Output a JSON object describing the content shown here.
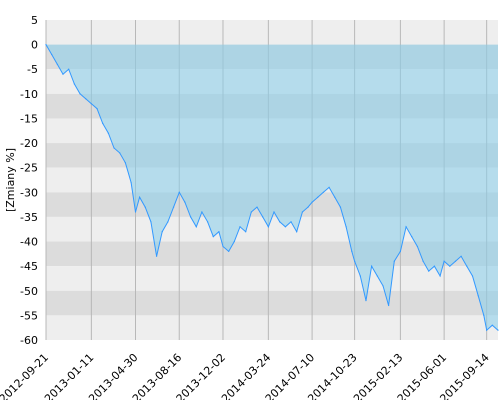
{
  "chart_data": {
    "type": "area",
    "ylabel": "[Zmiany %]",
    "ylim": [
      -60,
      5
    ],
    "y_ticks": [
      5,
      0,
      -5,
      -10,
      -15,
      -20,
      -25,
      -30,
      -35,
      -40,
      -45,
      -50,
      -55,
      -60
    ],
    "x_range": [
      "2012-09-21",
      "2015-10-12"
    ],
    "x_ticks": [
      "2012-09-21",
      "2013-01-11",
      "2013-04-30",
      "2013-08-16",
      "2013-12-02",
      "2014-03-24",
      "2014-07-10",
      "2014-10-23",
      "2015-02-13",
      "2015-06-01",
      "2015-09-14"
    ],
    "grid": true,
    "series": [
      {
        "x": [
          "2012-09-21",
          "2012-10-05",
          "2012-10-19",
          "2012-11-02",
          "2012-11-16",
          "2012-11-30",
          "2012-12-14",
          "2012-12-28",
          "2013-01-11",
          "2013-01-25",
          "2013-02-08",
          "2013-02-22",
          "2013-03-08",
          "2013-03-22",
          "2013-04-05",
          "2013-04-19",
          "2013-04-30",
          "2013-05-10",
          "2013-05-24",
          "2013-06-07",
          "2013-06-21",
          "2013-07-05",
          "2013-07-19",
          "2013-08-02",
          "2013-08-16",
          "2013-08-30",
          "2013-09-13",
          "2013-09-27",
          "2013-10-11",
          "2013-10-25",
          "2013-11-08",
          "2013-11-22",
          "2013-12-02",
          "2013-12-16",
          "2013-12-30",
          "2014-01-13",
          "2014-01-27",
          "2014-02-10",
          "2014-02-24",
          "2014-03-10",
          "2014-03-24",
          "2014-04-07",
          "2014-04-21",
          "2014-05-05",
          "2014-05-19",
          "2014-06-02",
          "2014-06-16",
          "2014-06-30",
          "2014-07-10",
          "2014-07-24",
          "2014-08-07",
          "2014-08-21",
          "2014-09-04",
          "2014-09-18",
          "2014-10-02",
          "2014-10-16",
          "2014-10-23",
          "2014-11-06",
          "2014-11-20",
          "2014-12-04",
          "2014-12-18",
          "2015-01-01",
          "2015-01-15",
          "2015-01-29",
          "2015-02-13",
          "2015-02-27",
          "2015-03-13",
          "2015-03-27",
          "2015-04-10",
          "2015-04-24",
          "2015-05-08",
          "2015-05-22",
          "2015-06-01",
          "2015-06-15",
          "2015-06-29",
          "2015-07-13",
          "2015-07-27",
          "2015-08-10",
          "2015-08-24",
          "2015-09-07",
          "2015-09-14",
          "2015-09-28",
          "2015-10-12"
        ],
        "values": [
          0,
          -2,
          -4,
          -6,
          -5,
          -8,
          -10,
          -11,
          -12,
          -13,
          -16,
          -18,
          -21,
          -22,
          -24,
          -28,
          -34,
          -31,
          -33,
          -36,
          -43,
          -38,
          -36,
          -33,
          -30,
          -32,
          -35,
          -37,
          -34,
          -36,
          -39,
          -38,
          -41,
          -42,
          -40,
          -37,
          -38,
          -34,
          -33,
          -35,
          -37,
          -34,
          -36,
          -37,
          -36,
          -38,
          -34,
          -33,
          -32,
          -31,
          -30,
          -29,
          -31,
          -33,
          -37,
          -42,
          -44,
          -47,
          -52,
          -45,
          -47,
          -49,
          -53,
          -44,
          -42,
          -37,
          -39,
          -41,
          -44,
          -46,
          -45,
          -47,
          -44,
          -45,
          -44,
          -43,
          -45,
          -47,
          -51,
          -55,
          -58,
          -57,
          -58
        ]
      }
    ]
  }
}
